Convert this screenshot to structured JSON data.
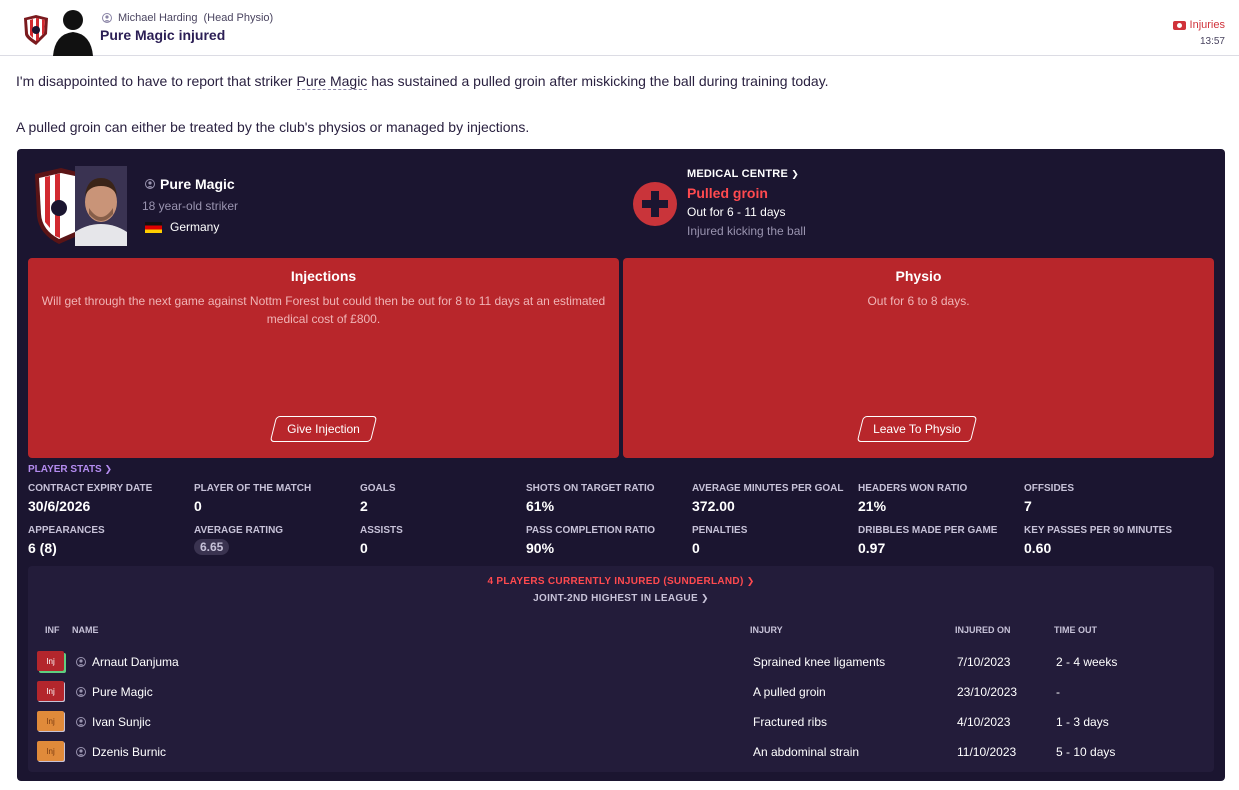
{
  "header": {
    "sender": "Michael Harding",
    "sender_role": "(Head Physio)",
    "subject": "Pure Magic injured",
    "category": "Injuries",
    "time": "13:57"
  },
  "body": {
    "p1_before": "I'm disappointed to have to report that striker ",
    "p1_link": "Pure Magic",
    "p1_after": " has sustained a pulled groin after miskicking the ball during training today.",
    "p2": "A pulled groin can either be treated by the club's physios or managed by injections."
  },
  "player": {
    "name": "Pure Magic",
    "desc": "18 year-old striker",
    "nationality": "Germany"
  },
  "medical": {
    "heading": "MEDICAL CENTRE",
    "injury": "Pulled groin",
    "duration": "Out for 6 - 11 days",
    "cause": "Injured kicking the ball"
  },
  "options": {
    "injections": {
      "title": "Injections",
      "text": "Will get through the next game against Nottm Forest but could then be out for 8 to 11 days at an estimated medical cost of £800.",
      "button": "Give Injection"
    },
    "physio": {
      "title": "Physio",
      "text": "Out for 6 to 8 days.",
      "button": "Leave To Physio"
    }
  },
  "stats": {
    "heading": "PLAYER STATS",
    "items": [
      {
        "label": "CONTRACT EXPIRY DATE",
        "value": "30/6/2026"
      },
      {
        "label": "PLAYER OF THE MATCH",
        "value": "0"
      },
      {
        "label": "GOALS",
        "value": "2"
      },
      {
        "label": "SHOTS ON TARGET RATIO",
        "value": "61%"
      },
      {
        "label": "AVERAGE MINUTES PER GOAL",
        "value": "372.00"
      },
      {
        "label": "HEADERS WON RATIO",
        "value": "21%"
      },
      {
        "label": "OFFSIDES",
        "value": "7"
      },
      {
        "label": "APPEARANCES",
        "value": "6 (8)"
      },
      {
        "label": "AVERAGE RATING",
        "value": "6.65"
      },
      {
        "label": "ASSISTS",
        "value": "0"
      },
      {
        "label": "PASS COMPLETION RATIO",
        "value": "90%"
      },
      {
        "label": "PENALTIES",
        "value": "0"
      },
      {
        "label": "DRIBBLES MADE PER GAME",
        "value": "0.97"
      },
      {
        "label": "KEY PASSES PER 90 MINUTES",
        "value": "0.60"
      }
    ]
  },
  "injury_list": {
    "heading": "4 PLAYERS CURRENTLY INJURED (SUNDERLAND)",
    "subheading": "JOINT-2ND HIGHEST IN LEAGUE",
    "columns": {
      "inf": "INF",
      "name": "NAME",
      "injury": "INJURY",
      "injured_on": "INJURED ON",
      "time_out": "TIME OUT"
    },
    "rows": [
      {
        "badge": "Inj",
        "name": "Arnaut Danjuma",
        "injury": "Sprained knee ligaments",
        "injured_on": "7/10/2023",
        "time_out": "2 - 4 weeks"
      },
      {
        "badge": "Inj",
        "name": "Pure Magic",
        "injury": "A pulled groin",
        "injured_on": "23/10/2023",
        "time_out": "-"
      },
      {
        "badge": "Inj",
        "name": "Ivan Sunjic",
        "injury": "Fractured ribs",
        "injured_on": "4/10/2023",
        "time_out": "1 - 3 days"
      },
      {
        "badge": "Inj",
        "name": "Dzenis Burnic",
        "injury": "An abdominal strain",
        "injured_on": "11/10/2023",
        "time_out": "5 - 10 days"
      }
    ]
  }
}
